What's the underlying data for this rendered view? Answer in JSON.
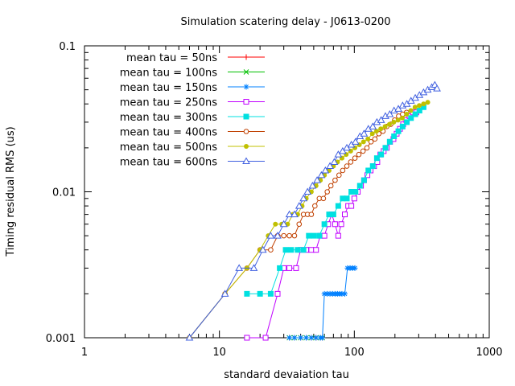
{
  "chart_data": {
    "type": "scatter",
    "title": "Simulation scatering delay - J0613-0200",
    "xlabel": "standard devaiation tau",
    "ylabel": "Timing residual RMS (us)",
    "xscale": "log",
    "yscale": "log",
    "xlim": [
      1,
      1000
    ],
    "ylim": [
      0.001,
      0.1
    ],
    "x_ticks": [
      "1",
      "10",
      "100",
      "1000"
    ],
    "y_ticks": [
      "0.001",
      "0.01",
      "0.1"
    ],
    "grid": false,
    "legend_position": "top-left",
    "series": [
      {
        "name": "mean tau = 50ns",
        "color": "#ff0000",
        "marker": "plus",
        "points": [
          [
            33,
            0.001
          ],
          [
            36,
            0.001
          ],
          [
            40,
            0.001
          ],
          [
            44,
            0.001
          ],
          [
            48,
            0.001
          ],
          [
            52,
            0.001
          ],
          [
            56,
            0.001
          ],
          [
            58,
            0.001
          ]
        ]
      },
      {
        "name": "mean tau = 100ns",
        "color": "#00c000",
        "marker": "cross",
        "points": [
          [
            33,
            0.001
          ],
          [
            36,
            0.001
          ],
          [
            40,
            0.001
          ],
          [
            44,
            0.001
          ],
          [
            48,
            0.001
          ],
          [
            52,
            0.001
          ],
          [
            56,
            0.001
          ],
          [
            58,
            0.001
          ]
        ]
      },
      {
        "name": "mean tau = 150ns",
        "color": "#0080ff",
        "marker": "star",
        "points": [
          [
            33,
            0.001
          ],
          [
            36,
            0.001
          ],
          [
            40,
            0.001
          ],
          [
            44,
            0.001
          ],
          [
            48,
            0.001
          ],
          [
            52,
            0.001
          ],
          [
            56,
            0.001
          ],
          [
            58,
            0.001
          ],
          [
            60,
            0.002
          ],
          [
            63,
            0.002
          ],
          [
            66,
            0.002
          ],
          [
            69,
            0.002
          ],
          [
            72,
            0.002
          ],
          [
            75,
            0.002
          ],
          [
            78,
            0.002
          ],
          [
            81,
            0.002
          ],
          [
            85,
            0.002
          ],
          [
            89,
            0.003
          ],
          [
            93,
            0.003
          ],
          [
            97,
            0.003
          ],
          [
            101,
            0.003
          ]
        ]
      },
      {
        "name": "mean tau = 250ns",
        "color": "#c000ff",
        "marker": "square-open",
        "points": [
          [
            16,
            0.001
          ],
          [
            22,
            0.001
          ],
          [
            27,
            0.002
          ],
          [
            30,
            0.003
          ],
          [
            33,
            0.003
          ],
          [
            37,
            0.003
          ],
          [
            40,
            0.004
          ],
          [
            44,
            0.004
          ],
          [
            48,
            0.004
          ],
          [
            52,
            0.004
          ],
          [
            56,
            0.005
          ],
          [
            60,
            0.005
          ],
          [
            64,
            0.006
          ],
          [
            68,
            0.007
          ],
          [
            72,
            0.006
          ],
          [
            76,
            0.005
          ],
          [
            80,
            0.006
          ],
          [
            85,
            0.007
          ],
          [
            90,
            0.008
          ],
          [
            95,
            0.008
          ],
          [
            100,
            0.009
          ],
          [
            106,
            0.01
          ],
          [
            112,
            0.011
          ],
          [
            118,
            0.012
          ],
          [
            125,
            0.013
          ],
          [
            132,
            0.014
          ],
          [
            140,
            0.015
          ],
          [
            148,
            0.016
          ],
          [
            156,
            0.018
          ],
          [
            165,
            0.019
          ],
          [
            174,
            0.02
          ],
          [
            184,
            0.022
          ],
          [
            195,
            0.023
          ],
          [
            206,
            0.025
          ],
          [
            218,
            0.027
          ],
          [
            230,
            0.029
          ],
          [
            243,
            0.031
          ],
          [
            257,
            0.033
          ],
          [
            272,
            0.035
          ],
          [
            288,
            0.035
          ]
        ]
      },
      {
        "name": "mean tau = 300ns",
        "color": "#00e0e0",
        "marker": "square-filled",
        "points": [
          [
            16,
            0.002
          ],
          [
            20,
            0.002
          ],
          [
            24,
            0.002
          ],
          [
            28,
            0.003
          ],
          [
            31,
            0.004
          ],
          [
            34,
            0.004
          ],
          [
            38,
            0.004
          ],
          [
            42,
            0.004
          ],
          [
            46,
            0.005
          ],
          [
            50,
            0.005
          ],
          [
            55,
            0.005
          ],
          [
            60,
            0.006
          ],
          [
            65,
            0.007
          ],
          [
            70,
            0.007
          ],
          [
            76,
            0.008
          ],
          [
            82,
            0.009
          ],
          [
            88,
            0.009
          ],
          [
            95,
            0.01
          ],
          [
            102,
            0.01
          ],
          [
            110,
            0.011
          ],
          [
            118,
            0.012
          ],
          [
            127,
            0.014
          ],
          [
            137,
            0.015
          ],
          [
            147,
            0.017
          ],
          [
            158,
            0.018
          ],
          [
            170,
            0.02
          ],
          [
            183,
            0.022
          ],
          [
            197,
            0.024
          ],
          [
            212,
            0.026
          ],
          [
            228,
            0.028
          ],
          [
            245,
            0.03
          ],
          [
            263,
            0.032
          ],
          [
            283,
            0.034
          ],
          [
            304,
            0.036
          ],
          [
            326,
            0.038
          ]
        ]
      },
      {
        "name": "mean tau = 400ns",
        "color": "#c04000",
        "marker": "circle-open",
        "points": [
          [
            6,
            0.001
          ],
          [
            11,
            0.002
          ],
          [
            16,
            0.003
          ],
          [
            20,
            0.004
          ],
          [
            24,
            0.004
          ],
          [
            27,
            0.005
          ],
          [
            30,
            0.005
          ],
          [
            33,
            0.005
          ],
          [
            36,
            0.005
          ],
          [
            39,
            0.006
          ],
          [
            42,
            0.007
          ],
          [
            45,
            0.007
          ],
          [
            48,
            0.007
          ],
          [
            51,
            0.008
          ],
          [
            55,
            0.009
          ],
          [
            59,
            0.009
          ],
          [
            63,
            0.01
          ],
          [
            67,
            0.011
          ],
          [
            72,
            0.012
          ],
          [
            77,
            0.013
          ],
          [
            82,
            0.014
          ],
          [
            88,
            0.015
          ],
          [
            94,
            0.016
          ],
          [
            101,
            0.017
          ],
          [
            108,
            0.018
          ],
          [
            116,
            0.019
          ],
          [
            124,
            0.02
          ],
          [
            133,
            0.022
          ],
          [
            142,
            0.023
          ],
          [
            152,
            0.025
          ],
          [
            163,
            0.026
          ],
          [
            174,
            0.028
          ],
          [
            186,
            0.029
          ],
          [
            199,
            0.031
          ],
          [
            213,
            0.033
          ],
          [
            228,
            0.034
          ],
          [
            244,
            0.035
          ]
        ]
      },
      {
        "name": "mean tau = 500ns",
        "color": "#c0c000",
        "marker": "circle-filled",
        "points": [
          [
            6,
            0.001
          ],
          [
            11,
            0.002
          ],
          [
            16,
            0.003
          ],
          [
            20,
            0.004
          ],
          [
            23,
            0.005
          ],
          [
            26,
            0.006
          ],
          [
            29,
            0.006
          ],
          [
            32,
            0.006
          ],
          [
            35,
            0.007
          ],
          [
            38,
            0.007
          ],
          [
            41,
            0.008
          ],
          [
            44,
            0.009
          ],
          [
            48,
            0.01
          ],
          [
            52,
            0.011
          ],
          [
            56,
            0.012
          ],
          [
            60,
            0.013
          ],
          [
            65,
            0.014
          ],
          [
            70,
            0.015
          ],
          [
            75,
            0.016
          ],
          [
            81,
            0.017
          ],
          [
            87,
            0.018
          ],
          [
            94,
            0.019
          ],
          [
            101,
            0.02
          ],
          [
            109,
            0.021
          ],
          [
            117,
            0.022
          ],
          [
            126,
            0.023
          ],
          [
            136,
            0.025
          ],
          [
            146,
            0.026
          ],
          [
            157,
            0.027
          ],
          [
            169,
            0.028
          ],
          [
            182,
            0.029
          ],
          [
            196,
            0.03
          ],
          [
            211,
            0.031
          ],
          [
            227,
            0.032
          ],
          [
            244,
            0.034
          ],
          [
            262,
            0.036
          ],
          [
            282,
            0.038
          ],
          [
            303,
            0.039
          ],
          [
            326,
            0.04
          ],
          [
            350,
            0.041
          ]
        ]
      },
      {
        "name": "mean tau = 600ns",
        "color": "#4060e0",
        "marker": "triangle-open",
        "points": [
          [
            6,
            0.001
          ],
          [
            11,
            0.002
          ],
          [
            14,
            0.003
          ],
          [
            18,
            0.003
          ],
          [
            21,
            0.004
          ],
          [
            24,
            0.005
          ],
          [
            27,
            0.005
          ],
          [
            30,
            0.006
          ],
          [
            33,
            0.007
          ],
          [
            36,
            0.007
          ],
          [
            39,
            0.008
          ],
          [
            42,
            0.009
          ],
          [
            45,
            0.01
          ],
          [
            49,
            0.011
          ],
          [
            53,
            0.012
          ],
          [
            57,
            0.013
          ],
          [
            61,
            0.014
          ],
          [
            66,
            0.015
          ],
          [
            71,
            0.016
          ],
          [
            76,
            0.018
          ],
          [
            82,
            0.019
          ],
          [
            88,
            0.02
          ],
          [
            95,
            0.021
          ],
          [
            102,
            0.022
          ],
          [
            110,
            0.024
          ],
          [
            118,
            0.025
          ],
          [
            127,
            0.027
          ],
          [
            137,
            0.028
          ],
          [
            147,
            0.03
          ],
          [
            158,
            0.031
          ],
          [
            170,
            0.033
          ],
          [
            183,
            0.034
          ],
          [
            197,
            0.036
          ],
          [
            212,
            0.037
          ],
          [
            228,
            0.039
          ],
          [
            245,
            0.04
          ],
          [
            263,
            0.042
          ],
          [
            283,
            0.044
          ],
          [
            304,
            0.046
          ],
          [
            326,
            0.048
          ],
          [
            350,
            0.05
          ],
          [
            375,
            0.052
          ],
          [
            395,
            0.054
          ],
          [
            410,
            0.051
          ]
        ]
      }
    ]
  }
}
